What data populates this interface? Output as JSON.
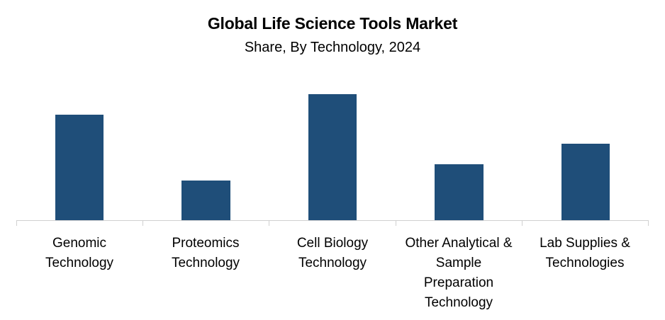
{
  "header": {
    "title": "Global Life Science Tools Market",
    "subtitle": "Share, By Technology, 2024"
  },
  "colors": {
    "bar": "#1F4E79",
    "axis": "#d0d0d0"
  },
  "chart_data": {
    "type": "bar",
    "title": "Global Life Science Tools Market",
    "subtitle": "Share, By Technology, 2024",
    "categories": [
      "Genomic Technology",
      "Proteomics Technology",
      "Cell Biology Technology",
      "Other Analytical & Sample Preparation Technology",
      "Lab Supplies & Technologies"
    ],
    "values": [
      26.0,
      9.8,
      31.0,
      13.8,
      18.8
    ],
    "value_note": "Relative share estimated from bar heights; no axis values shown",
    "xlabel": "",
    "ylabel": "",
    "grid": false,
    "legend": "none"
  },
  "labels": [
    [
      "Genomic",
      "Technology"
    ],
    [
      "Proteomics",
      "Technology"
    ],
    [
      "Cell Biology",
      "Technology"
    ],
    [
      "Other Analytical &",
      "Sample",
      "Preparation",
      "Technology"
    ],
    [
      "Lab Supplies &",
      "Technologies"
    ]
  ]
}
